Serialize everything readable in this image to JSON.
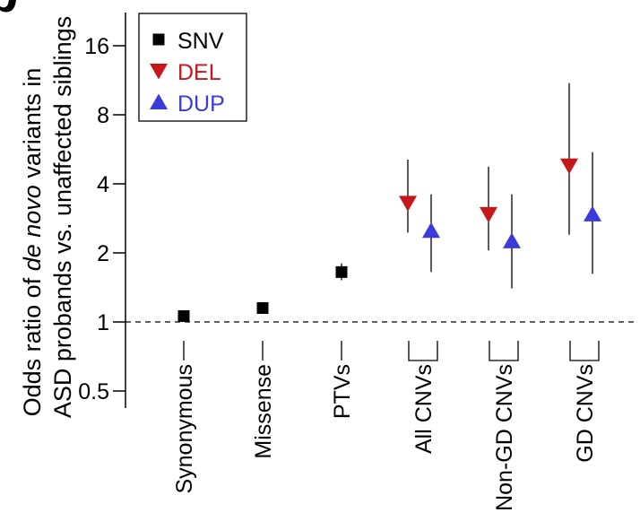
{
  "panel_label": "b",
  "chart_data": {
    "type": "scatter",
    "ylabel_line1_prefix": "Odds ratio of ",
    "ylabel_line1_italic": "de novo",
    "ylabel_line1_suffix": " variants in",
    "ylabel_line2": "ASD probands vs. unaffected siblings",
    "yscale": "log2",
    "ylim": [
      0.45,
      22
    ],
    "yticks": [
      0.5,
      1,
      2,
      4,
      8,
      16
    ],
    "ytick_labels": [
      "0.5",
      "1",
      "2",
      "4",
      "8",
      "16"
    ],
    "reference_line": 1,
    "categories": [
      "Synonymous",
      "Missense",
      "PTVs",
      "All CNVs",
      "Non-GD CNVs",
      "GD CNVs"
    ],
    "legend_position": "top-left",
    "series": [
      {
        "name": "SNV",
        "marker": "square",
        "color": "#000000",
        "points": [
          {
            "category": "Synonymous",
            "value": 1.06,
            "lo": 1.02,
            "hi": 1.1
          },
          {
            "category": "Missense",
            "value": 1.15,
            "lo": 1.12,
            "hi": 1.19
          },
          {
            "category": "PTVs",
            "value": 1.65,
            "lo": 1.52,
            "hi": 1.8
          }
        ]
      },
      {
        "name": "DEL",
        "marker": "triangle-down",
        "color": "#c8161d",
        "points": [
          {
            "category": "All CNVs",
            "value": 3.3,
            "lo": 2.45,
            "hi": 5.1
          },
          {
            "category": "Non-GD CNVs",
            "value": 2.95,
            "lo": 2.05,
            "hi": 4.75
          },
          {
            "category": "GD CNVs",
            "value": 4.8,
            "lo": 2.4,
            "hi": 11.0
          }
        ]
      },
      {
        "name": "DUP",
        "marker": "triangle-up",
        "color": "#3b3bdc",
        "points": [
          {
            "category": "All CNVs",
            "value": 2.5,
            "lo": 1.65,
            "hi": 3.6
          },
          {
            "category": "Non-GD CNVs",
            "value": 2.25,
            "lo": 1.4,
            "hi": 3.6
          },
          {
            "category": "GD CNVs",
            "value": 2.95,
            "lo": 1.62,
            "hi": 5.5
          }
        ]
      }
    ]
  }
}
